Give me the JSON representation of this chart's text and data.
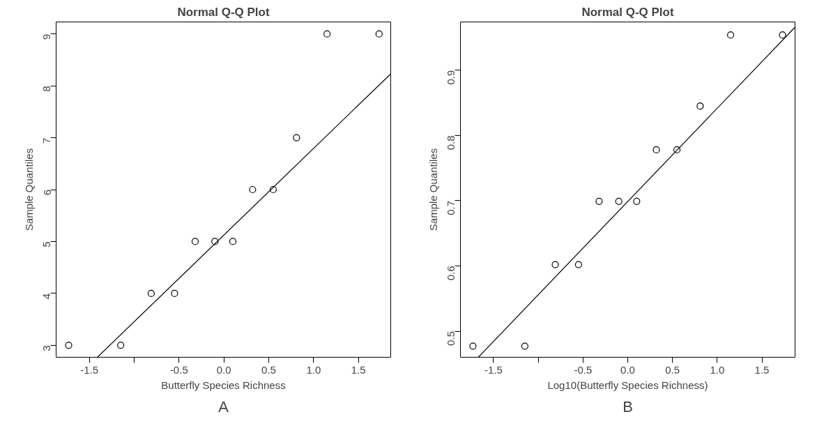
{
  "chart_data": [
    {
      "type": "scatter",
      "title": "Normal Q-Q Plot",
      "xlabel": "Butterfly Species Richness",
      "ylabel": "Sample Quantiles",
      "annotations": [
        "A"
      ],
      "marker": "circle",
      "grid": false,
      "series": [
        {
          "color": "#000000",
          "x": [
            -1.73,
            -1.15,
            -0.81,
            -0.55,
            -0.32,
            -0.1,
            0.1,
            0.32,
            0.55,
            0.81,
            1.15,
            1.73
          ],
          "values": [
            3,
            3,
            4,
            4,
            5,
            5,
            5,
            6,
            6,
            7,
            9,
            9
          ]
        },
        {
          "type": "line",
          "marker": "none",
          "color": "#000000",
          "x": [
            -1.41,
            1.86
          ],
          "values": [
            2.77,
            8.23
          ]
        }
      ],
      "xlim": [
        -1.87,
        1.86
      ],
      "ylim": [
        2.77,
        9.23
      ],
      "xticks": [
        -1.5,
        {
          "value": -1.0,
          "label": null
        },
        -0.5,
        {
          "value": 0,
          "label": "0.0"
        },
        0.5,
        {
          "value": 1,
          "label": "1.0"
        },
        1.5
      ],
      "yticks": [
        3,
        4,
        5,
        6,
        7,
        8,
        9
      ]
    },
    {
      "type": "scatter",
      "title": "Normal Q-Q Plot",
      "xlabel": "Log10(Butterfly Species Richness)",
      "ylabel": "Sample Quantiles",
      "annotations": [
        "B"
      ],
      "marker": "circle",
      "grid": false,
      "series": [
        {
          "color": "#000000",
          "x": [
            -1.73,
            -1.15,
            -0.81,
            -0.55,
            -0.32,
            -0.1,
            0.1,
            0.32,
            0.55,
            0.81,
            1.15,
            1.73
          ],
          "values": [
            0.477,
            0.477,
            0.602,
            0.602,
            0.699,
            0.699,
            0.699,
            0.778,
            0.778,
            0.845,
            0.954,
            0.954
          ]
        },
        {
          "type": "line",
          "marker": "none",
          "color": "#000000",
          "x": [
            -1.67,
            1.87
          ],
          "values": [
            0.46,
            0.966
          ]
        }
      ],
      "xlim": [
        -1.87,
        1.87
      ],
      "ylim": [
        0.46,
        0.974
      ],
      "xticks": [
        -1.5,
        {
          "value": -1.0,
          "label": null
        },
        -0.5,
        {
          "value": 0,
          "label": "0.0"
        },
        0.5,
        {
          "value": 1,
          "label": "1.0"
        },
        1.5
      ],
      "yticks": [
        0.5,
        0.6,
        0.7,
        0.8,
        0.9
      ]
    }
  ]
}
